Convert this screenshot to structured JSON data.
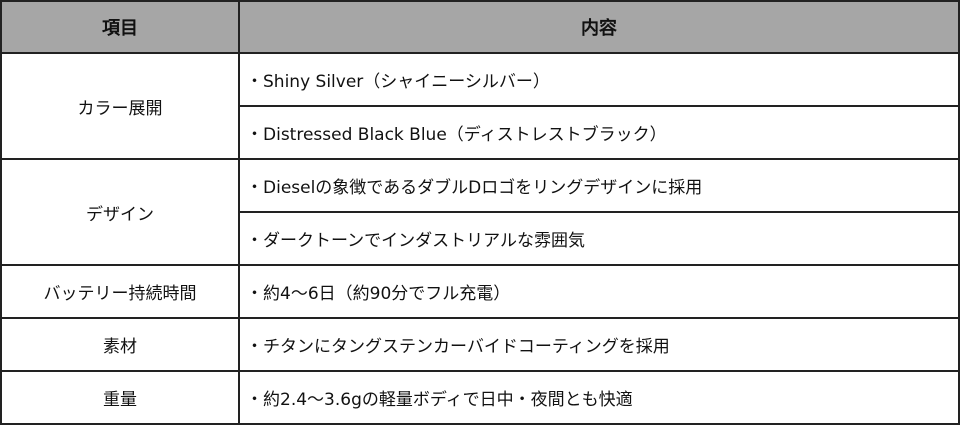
{
  "header": {
    "item": "項目",
    "content": "内容"
  },
  "rows": [
    {
      "label": "カラー展開",
      "values": [
        "・Shiny Silver（シャイニーシルバー）",
        "・Distressed Black Blue（ディストレストブラック）"
      ]
    },
    {
      "label": "デザイン",
      "values": [
        "・Dieselの象徴であるダブルDロゴをリングデザインに採用",
        "・ダークトーンでインダストリアルな雰囲気"
      ]
    },
    {
      "label": "バッテリー持続時間",
      "values": [
        "・約4～6日（約90分でフル充電）"
      ]
    },
    {
      "label": "素材",
      "values": [
        "・チタンにタングステンカーバイドコーティングを採用"
      ]
    },
    {
      "label": "重量",
      "values": [
        "・約2.4～3.6gの軽量ボディで日中・夜間とも快適"
      ]
    }
  ],
  "colors": {
    "header_bg": "#a6a6a6",
    "border": "#222222"
  }
}
